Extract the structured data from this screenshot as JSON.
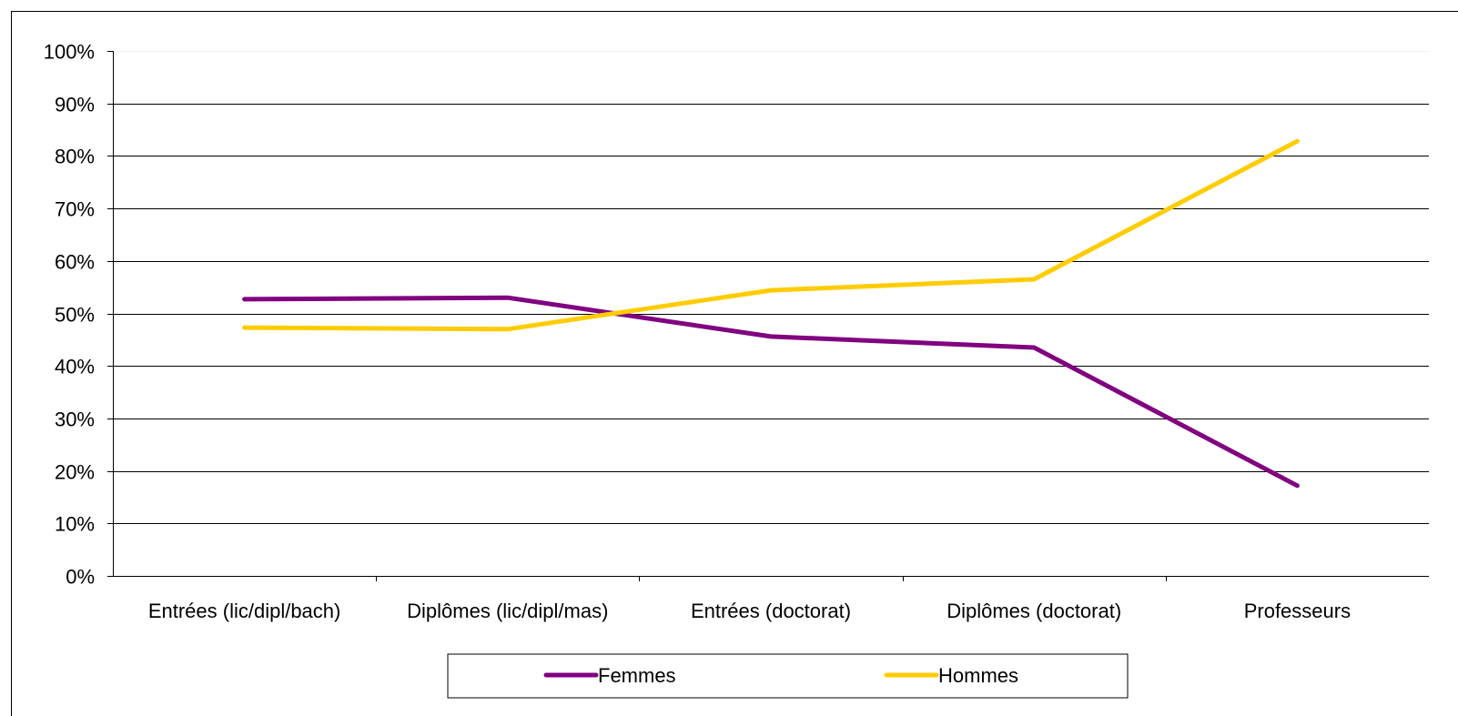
{
  "chart_data": {
    "type": "line",
    "title": "",
    "xlabel": "",
    "ylabel": "",
    "categories": [
      "Entrées (lic/dipl/bach)",
      "Diplômes (lic/dipl/mas)",
      "Entrées (doctorat)",
      "Diplômes (doctorat)",
      "Professeurs"
    ],
    "series": [
      {
        "name": "Femmes",
        "color": "#800080",
        "values": [
          52.7,
          53.0,
          45.6,
          43.5,
          17.2
        ]
      },
      {
        "name": "Hommes",
        "color": "#FFCC00",
        "values": [
          47.3,
          47.0,
          54.4,
          56.5,
          82.8
        ]
      }
    ],
    "ylim": [
      0,
      100
    ],
    "yticks": [
      "0%",
      "10%",
      "20%",
      "30%",
      "40%",
      "50%",
      "60%",
      "70%",
      "80%",
      "90%",
      "100%"
    ],
    "grid": true,
    "legend_position": "bottom"
  }
}
